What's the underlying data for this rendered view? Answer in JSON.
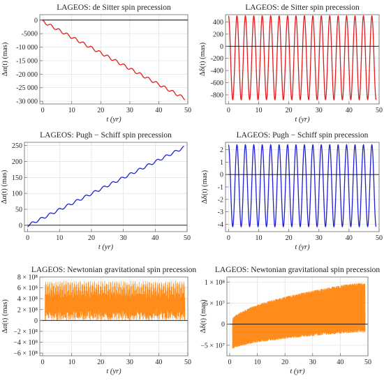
{
  "chart_data": [
    {
      "type": "line",
      "title": "LAGEOS: de Sitter spin precession",
      "xlabel": "t (yr)",
      "ylabel": "Δα(t)  (mas)",
      "xlim": [
        -1,
        50
      ],
      "ylim": [
        -31000,
        2000
      ],
      "xticks": [
        0,
        10,
        20,
        30,
        40,
        50
      ],
      "yticks": [
        0,
        -5000,
        -10000,
        -15000,
        -20000,
        -25000,
        -30000
      ],
      "ytick_labels": [
        "0",
        "-5000",
        "-10 000",
        "-15 000",
        "-20 000",
        "-25 000",
        "-30 000"
      ],
      "grid": true,
      "color": "#e31a1c",
      "series": [
        {
          "trend": [
            0,
            -28500
          ],
          "amplitude": 1000,
          "period": 2.8,
          "x": [
            0,
            49
          ]
        }
      ]
    },
    {
      "type": "line",
      "title": "LAGEOS: de Sitter spin precession",
      "xlabel": "t (yr)",
      "ylabel": "Δδ(t)  (mas)",
      "xlim": [
        -1,
        50
      ],
      "ylim": [
        -950,
        520
      ],
      "xticks": [
        0,
        10,
        20,
        30,
        40,
        50
      ],
      "yticks": [
        400,
        200,
        0,
        -200,
        -400,
        -600,
        -800
      ],
      "ytick_labels": [
        "400",
        "200",
        "0",
        "-200",
        "-400",
        "-600",
        "-800"
      ],
      "grid": true,
      "color": "#e31a1c",
      "series": [
        {
          "center": -190,
          "amplitude": 690,
          "period": 2.8,
          "x": [
            0,
            49
          ]
        }
      ]
    },
    {
      "type": "line",
      "title": "LAGEOS: Pugh − Schiff spin precession",
      "xlabel": "t (yr)",
      "ylabel": "Δα(t)  (mas)",
      "xlim": [
        -1,
        50
      ],
      "ylim": [
        -20,
        260
      ],
      "xticks": [
        0,
        10,
        20,
        30,
        40,
        50
      ],
      "yticks": [
        0,
        50,
        100,
        150,
        200,
        250
      ],
      "ytick_labels": [
        "0",
        "50",
        "100",
        "150",
        "200",
        "250"
      ],
      "grid": true,
      "color": "#1f1fd6",
      "series": [
        {
          "trend": [
            -5,
            240
          ],
          "amplitude": 8,
          "period": 2.8,
          "x": [
            0,
            49
          ]
        }
      ]
    },
    {
      "type": "line",
      "title": "LAGEOS: Pugh − Schiff spin precession",
      "xlabel": "t (yr)",
      "ylabel": "Δδ(t)  (mas)",
      "xlim": [
        -1,
        50
      ],
      "ylim": [
        -4.6,
        2.6
      ],
      "xticks": [
        0,
        10,
        20,
        30,
        40,
        50
      ],
      "yticks": [
        2,
        1,
        0,
        -1,
        -2,
        -3,
        -4
      ],
      "ytick_labels": [
        "2",
        "1",
        "0",
        "-1",
        "-2",
        "-3",
        "-4"
      ],
      "grid": true,
      "color": "#1f1fd6",
      "series": [
        {
          "center": -0.9,
          "amplitude": 3.3,
          "period": 2.8,
          "x": [
            0,
            49
          ]
        }
      ]
    },
    {
      "type": "line",
      "title": "LAGEOS: Newtonian gravitational spin precession",
      "xlabel": "t (yr)",
      "ylabel": "Δα(t)  (mas)",
      "xlim": [
        -1,
        50
      ],
      "ylim": [
        -650000000,
        800000000
      ],
      "xticks": [
        0,
        10,
        20,
        30,
        40,
        50
      ],
      "yticks": [
        800000000,
        600000000,
        400000000,
        200000000,
        0,
        -200000000,
        -400000000,
        -600000000
      ],
      "ytick_labels": [
        "8 × 10⁸",
        "6 × 10⁸",
        "4 × 10⁸",
        "2 × 10⁸",
        "0",
        "−2 × 10⁸",
        "−4 × 10⁸",
        "−6 × 10⁸"
      ],
      "grid": true,
      "color": "#ff8c1a",
      "series": [
        {
          "high": 730000000,
          "low": -530000000,
          "x": [
            0,
            49
          ]
        }
      ]
    },
    {
      "type": "line",
      "title": "LAGEOS: Newtonian gravitational spin precession",
      "xlabel": "t (yr)",
      "ylabel": "Δδ(t)  (mas)",
      "xlim": [
        -1,
        50
      ],
      "ylim": [
        -75000000,
        112000000
      ],
      "xticks": [
        0,
        10,
        20,
        30,
        40,
        50
      ],
      "yticks": [
        100000000,
        50000000,
        0,
        -50000000
      ],
      "ytick_labels": [
        "1 × 10⁸",
        "5 × 10⁷",
        "0",
        "−5 × 10⁷"
      ],
      "grid": true,
      "color": "#ff8c1a",
      "series": [
        {
          "upper_envelope": [
            0,
            97000000
          ],
          "lower_envelope": [
            -65000000,
            -20000000
          ],
          "x": [
            0,
            49
          ]
        }
      ]
    }
  ]
}
